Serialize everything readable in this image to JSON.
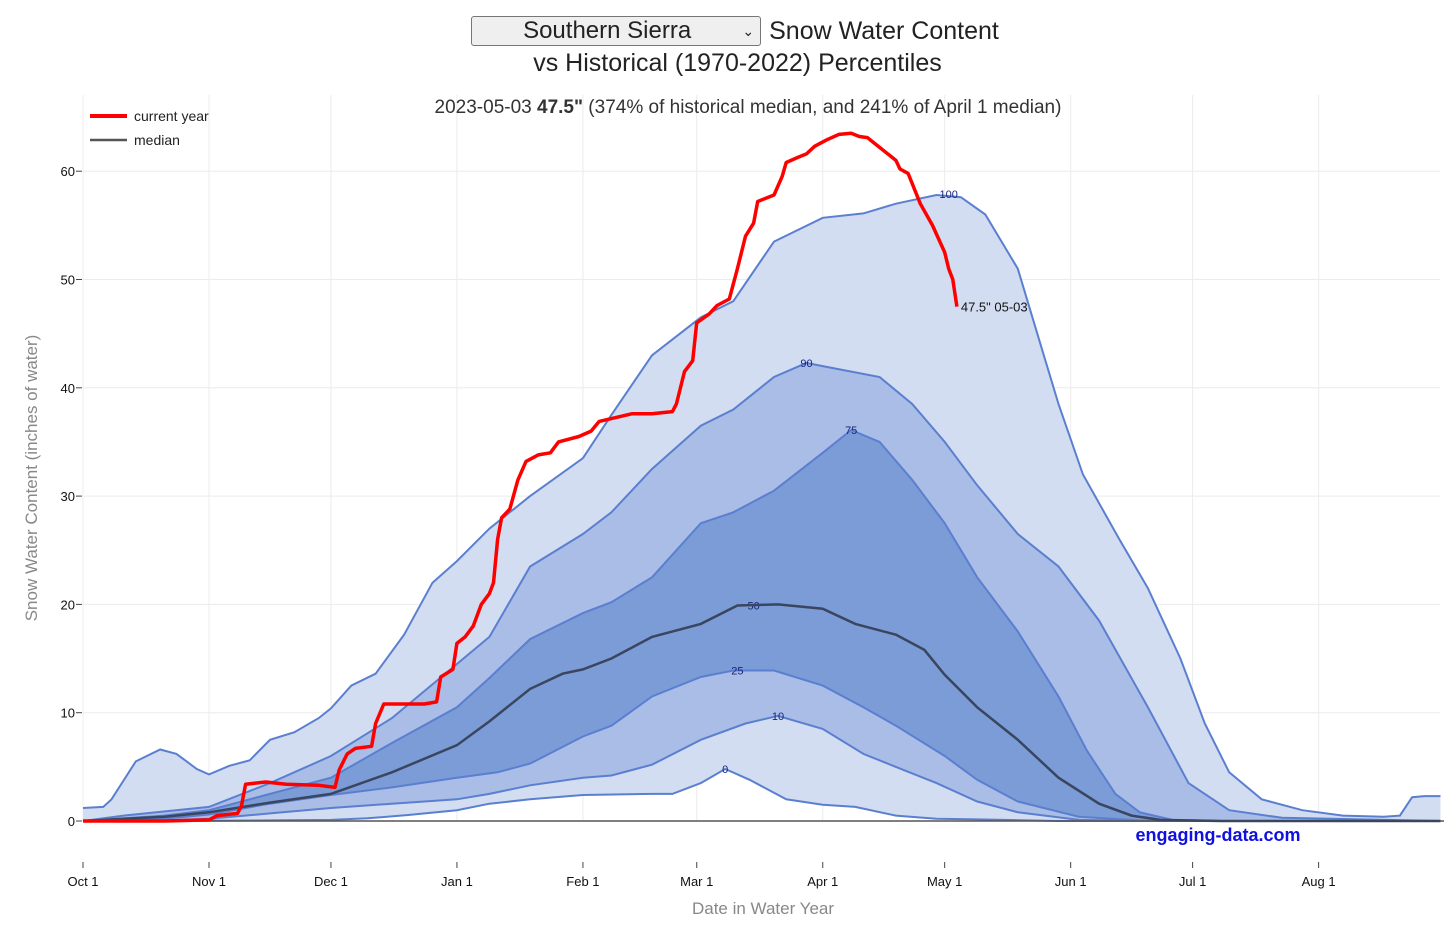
{
  "header": {
    "region_selected": "Southern Sierra",
    "title_suffix": "Snow Water Content",
    "title_line2": "vs Historical (1970-2022) Percentiles"
  },
  "annotation": {
    "date": "2023-05-03",
    "value": "47.5\"",
    "rest": "(374% of historical median, and 241% of April 1 median)",
    "end_label": "47.5\" 05-03"
  },
  "watermark": "engaging-data.com",
  "colors": {
    "current": "#ff0000",
    "median": "#3a4660",
    "band_outer": "#d3ddf1",
    "band_middle": "#a9bde6",
    "band_inner": "#7b9cd6",
    "percentile_line": "#5b7fd0"
  },
  "chart_data": {
    "type": "area",
    "xlabel": "Date in Water Year",
    "ylabel": "Snow Water Content (inches of water)",
    "ylim": [
      0,
      65
    ],
    "xlim": [
      0,
      334
    ],
    "x_unit": "day of water year (0 = Oct 1)",
    "grid": true,
    "legend_position": "top-left",
    "x_ticks": [
      {
        "day": 0,
        "label": "Oct 1"
      },
      {
        "day": 31,
        "label": "Nov 1"
      },
      {
        "day": 61,
        "label": "Dec 1"
      },
      {
        "day": 92,
        "label": "Jan 1"
      },
      {
        "day": 123,
        "label": "Feb 1"
      },
      {
        "day": 151,
        "label": "Mar 1"
      },
      {
        "day": 182,
        "label": "Apr 1"
      },
      {
        "day": 212,
        "label": "May 1"
      },
      {
        "day": 243,
        "label": "Jun 1"
      },
      {
        "day": 273,
        "label": "Jul 1"
      },
      {
        "day": 304,
        "label": "Aug 1"
      }
    ],
    "y_ticks": [
      0,
      10,
      20,
      30,
      40,
      50,
      60
    ],
    "legend": [
      {
        "name": "current year",
        "color": "#ff0000"
      },
      {
        "name": "median",
        "color": "#555555"
      }
    ],
    "percentiles": [
      {
        "name": "0",
        "label_at": [
          158,
          4.8
        ],
        "points": [
          [
            0,
            0
          ],
          [
            31,
            0.02
          ],
          [
            61,
            0.1
          ],
          [
            70,
            0.25
          ],
          [
            80,
            0.55
          ],
          [
            92,
            1.0
          ],
          [
            100,
            1.6
          ],
          [
            110,
            2.0
          ],
          [
            123,
            2.4
          ],
          [
            140,
            2.5
          ],
          [
            145,
            2.5
          ],
          [
            152,
            3.5
          ],
          [
            158,
            4.8
          ],
          [
            164,
            3.8
          ],
          [
            173,
            2.0
          ],
          [
            182,
            1.5
          ],
          [
            190,
            1.3
          ],
          [
            200,
            0.5
          ],
          [
            210,
            0.2
          ],
          [
            220,
            0.15
          ],
          [
            240,
            0
          ],
          [
            334,
            0
          ]
        ]
      },
      {
        "name": "10",
        "label_at": [
          171,
          9.7
        ],
        "points": [
          [
            0,
            0
          ],
          [
            20,
            0.05
          ],
          [
            31,
            0.2
          ],
          [
            46,
            0.7
          ],
          [
            61,
            1.2
          ],
          [
            76,
            1.6
          ],
          [
            92,
            2.0
          ],
          [
            100,
            2.5
          ],
          [
            110,
            3.3
          ],
          [
            123,
            4.0
          ],
          [
            130,
            4.2
          ],
          [
            140,
            5.2
          ],
          [
            152,
            7.5
          ],
          [
            163,
            9.0
          ],
          [
            171,
            9.7
          ],
          [
            182,
            8.5
          ],
          [
            192,
            6.2
          ],
          [
            200,
            5.0
          ],
          [
            210,
            3.5
          ],
          [
            220,
            1.8
          ],
          [
            230,
            0.8
          ],
          [
            245,
            0.1
          ],
          [
            260,
            0
          ],
          [
            334,
            0
          ]
        ]
      },
      {
        "name": "25",
        "label_at": [
          161,
          13.9
        ],
        "points": [
          [
            0,
            0
          ],
          [
            20,
            0.2
          ],
          [
            31,
            0.6
          ],
          [
            46,
            1.6
          ],
          [
            61,
            2.4
          ],
          [
            76,
            3.1
          ],
          [
            92,
            4.0
          ],
          [
            102,
            4.5
          ],
          [
            110,
            5.3
          ],
          [
            123,
            7.8
          ],
          [
            130,
            8.8
          ],
          [
            140,
            11.5
          ],
          [
            152,
            13.3
          ],
          [
            160,
            13.9
          ],
          [
            170,
            13.9
          ],
          [
            182,
            12.5
          ],
          [
            192,
            10.5
          ],
          [
            200,
            8.8
          ],
          [
            212,
            6.0
          ],
          [
            220,
            3.8
          ],
          [
            230,
            1.8
          ],
          [
            245,
            0.4
          ],
          [
            260,
            0.05
          ],
          [
            275,
            0
          ],
          [
            334,
            0
          ]
        ]
      },
      {
        "name": "50",
        "label_at": [
          165,
          19.9
        ],
        "points": [
          [
            0,
            0
          ],
          [
            20,
            0.4
          ],
          [
            31,
            0.8
          ],
          [
            46,
            1.7
          ],
          [
            61,
            2.5
          ],
          [
            76,
            4.5
          ],
          [
            92,
            7.0
          ],
          [
            100,
            9.2
          ],
          [
            110,
            12.2
          ],
          [
            118,
            13.6
          ],
          [
            123,
            14.0
          ],
          [
            130,
            15.0
          ],
          [
            140,
            17.0
          ],
          [
            152,
            18.2
          ],
          [
            161,
            19.9
          ],
          [
            171,
            20.0
          ],
          [
            182,
            19.6
          ],
          [
            190,
            18.2
          ],
          [
            200,
            17.2
          ],
          [
            207,
            15.8
          ],
          [
            212,
            13.5
          ],
          [
            220,
            10.5
          ],
          [
            230,
            7.5
          ],
          [
            240,
            4.0
          ],
          [
            250,
            1.6
          ],
          [
            258,
            0.5
          ],
          [
            265,
            0.1
          ],
          [
            280,
            0
          ],
          [
            334,
            0
          ]
        ]
      },
      {
        "name": "75",
        "label_at": [
          189,
          36.1
        ],
        "points": [
          [
            0,
            0
          ],
          [
            20,
            0.5
          ],
          [
            31,
            1.0
          ],
          [
            46,
            2.5
          ],
          [
            61,
            4.0
          ],
          [
            76,
            7.2
          ],
          [
            92,
            10.5
          ],
          [
            100,
            13.2
          ],
          [
            110,
            16.8
          ],
          [
            123,
            19.2
          ],
          [
            130,
            20.2
          ],
          [
            140,
            22.5
          ],
          [
            152,
            27.5
          ],
          [
            160,
            28.5
          ],
          [
            170,
            30.5
          ],
          [
            182,
            34.0
          ],
          [
            189,
            36.1
          ],
          [
            196,
            35.0
          ],
          [
            204,
            31.5
          ],
          [
            212,
            27.5
          ],
          [
            220,
            22.5
          ],
          [
            230,
            17.5
          ],
          [
            240,
            11.5
          ],
          [
            247,
            6.5
          ],
          [
            254,
            2.5
          ],
          [
            260,
            0.8
          ],
          [
            268,
            0.1
          ],
          [
            280,
            0
          ],
          [
            334,
            0
          ]
        ]
      },
      {
        "name": "90",
        "label_at": [
          178,
          42.3
        ],
        "points": [
          [
            0,
            0
          ],
          [
            10,
            0.5
          ],
          [
            31,
            1.3
          ],
          [
            46,
            3.5
          ],
          [
            61,
            6.0
          ],
          [
            76,
            9.5
          ],
          [
            92,
            14.5
          ],
          [
            100,
            17.0
          ],
          [
            110,
            23.5
          ],
          [
            123,
            26.5
          ],
          [
            130,
            28.5
          ],
          [
            140,
            32.5
          ],
          [
            152,
            36.5
          ],
          [
            160,
            38.0
          ],
          [
            170,
            41.0
          ],
          [
            178,
            42.3
          ],
          [
            182,
            42.0
          ],
          [
            196,
            41.0
          ],
          [
            204,
            38.5
          ],
          [
            212,
            35.0
          ],
          [
            220,
            31.0
          ],
          [
            230,
            26.5
          ],
          [
            240,
            23.5
          ],
          [
            250,
            18.5
          ],
          [
            262,
            10.5
          ],
          [
            272,
            3.5
          ],
          [
            282,
            1.0
          ],
          [
            295,
            0.3
          ],
          [
            334,
            0
          ]
        ]
      },
      {
        "name": "100",
        "label_at": [
          213,
          57.9
        ],
        "points": [
          [
            0,
            1.2
          ],
          [
            5,
            1.3
          ],
          [
            7,
            2.0
          ],
          [
            13,
            5.5
          ],
          [
            19,
            6.6
          ],
          [
            23,
            6.2
          ],
          [
            28,
            4.8
          ],
          [
            31,
            4.3
          ],
          [
            36,
            5.1
          ],
          [
            41,
            5.6
          ],
          [
            46,
            7.5
          ],
          [
            52,
            8.2
          ],
          [
            58,
            9.5
          ],
          [
            61,
            10.4
          ],
          [
            66,
            12.5
          ],
          [
            72,
            13.6
          ],
          [
            79,
            17.2
          ],
          [
            86,
            22.0
          ],
          [
            92,
            24.0
          ],
          [
            100,
            27.0
          ],
          [
            110,
            30.0
          ],
          [
            123,
            33.5
          ],
          [
            130,
            37.5
          ],
          [
            140,
            43.0
          ],
          [
            152,
            46.5
          ],
          [
            160,
            48.0
          ],
          [
            170,
            53.5
          ],
          [
            182,
            55.7
          ],
          [
            192,
            56.1
          ],
          [
            200,
            57.0
          ],
          [
            210,
            57.8
          ],
          [
            216,
            57.6
          ],
          [
            222,
            56.0
          ],
          [
            230,
            51.0
          ],
          [
            236,
            43.5
          ],
          [
            240,
            38.5
          ],
          [
            246,
            32.0
          ],
          [
            255,
            26.0
          ],
          [
            262,
            21.5
          ],
          [
            270,
            15.0
          ],
          [
            276,
            9.0
          ],
          [
            282,
            4.5
          ],
          [
            290,
            2.0
          ],
          [
            300,
            1.0
          ],
          [
            310,
            0.5
          ],
          [
            320,
            0.4
          ],
          [
            324,
            0.5
          ],
          [
            327,
            2.2
          ],
          [
            330,
            2.3
          ],
          [
            334,
            2.3
          ]
        ]
      }
    ],
    "current_year": {
      "name": "current year",
      "points": [
        [
          0,
          0
        ],
        [
          20,
          0
        ],
        [
          31,
          0.1
        ],
        [
          33,
          0.5
        ],
        [
          38,
          0.7
        ],
        [
          39,
          1.4
        ],
        [
          40,
          3.4
        ],
        [
          45,
          3.6
        ],
        [
          50,
          3.4
        ],
        [
          58,
          3.3
        ],
        [
          62,
          3.1
        ],
        [
          63,
          4.7
        ],
        [
          65,
          6.2
        ],
        [
          67,
          6.7
        ],
        [
          71,
          6.9
        ],
        [
          72,
          9.0
        ],
        [
          74,
          10.8
        ],
        [
          84,
          10.8
        ],
        [
          87,
          11.0
        ],
        [
          88,
          13.3
        ],
        [
          91,
          14.0
        ],
        [
          92,
          16.4
        ],
        [
          94,
          17.0
        ],
        [
          96,
          18.0
        ],
        [
          98,
          20.0
        ],
        [
          100,
          21.0
        ],
        [
          101,
          22.0
        ],
        [
          102,
          26.0
        ],
        [
          103,
          28.0
        ],
        [
          105,
          28.8
        ],
        [
          107,
          31.5
        ],
        [
          109,
          33.2
        ],
        [
          112,
          33.8
        ],
        [
          115,
          34.0
        ],
        [
          117,
          35.0
        ],
        [
          122,
          35.5
        ],
        [
          125,
          36.0
        ],
        [
          127,
          36.9
        ],
        [
          135,
          37.6
        ],
        [
          140,
          37.6
        ],
        [
          145,
          37.8
        ],
        [
          146,
          38.5
        ],
        [
          148,
          41.5
        ],
        [
          150,
          42.5
        ],
        [
          151,
          46.0
        ],
        [
          154,
          46.8
        ],
        [
          156,
          47.6
        ],
        [
          159,
          48.2
        ],
        [
          161,
          51.0
        ],
        [
          163,
          54.0
        ],
        [
          165,
          55.2
        ],
        [
          166,
          57.2
        ],
        [
          170,
          57.8
        ],
        [
          172,
          59.5
        ],
        [
          173,
          60.8
        ],
        [
          176,
          61.3
        ],
        [
          178,
          61.6
        ],
        [
          180,
          62.3
        ],
        [
          183,
          62.9
        ],
        [
          186,
          63.4
        ],
        [
          189,
          63.5
        ],
        [
          191,
          63.2
        ],
        [
          193,
          63.1
        ],
        [
          196,
          62.2
        ],
        [
          200,
          61.0
        ],
        [
          201,
          60.2
        ],
        [
          203,
          59.8
        ],
        [
          206,
          57.0
        ],
        [
          209,
          55.0
        ],
        [
          212,
          52.5
        ],
        [
          213,
          51.0
        ],
        [
          214,
          50.0
        ],
        [
          215,
          47.5
        ]
      ]
    }
  }
}
